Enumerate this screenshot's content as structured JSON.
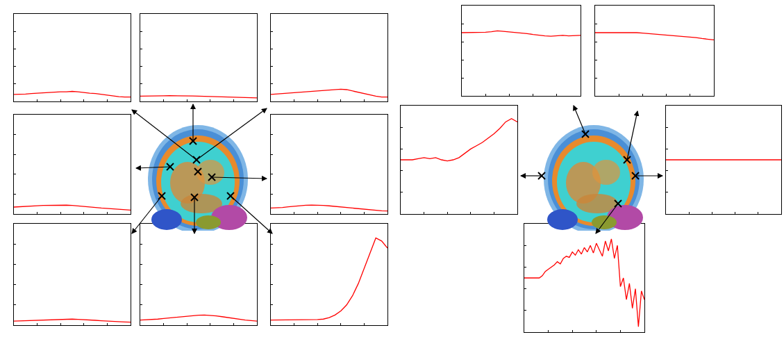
{
  "chart_data": [
    {
      "type": "line",
      "color": "#ff0000",
      "grid": false,
      "tick_labels": false,
      "xlim": [
        0,
        1
      ],
      "ylim": [
        0,
        1
      ],
      "xticks": [
        0,
        0.2,
        0.4,
        0.6,
        0.8,
        1
      ],
      "yticks": [
        0,
        0.2,
        0.4,
        0.6,
        0.8,
        1
      ],
      "x": [
        0,
        0.05,
        0.1,
        0.15,
        0.2,
        0.25,
        0.3,
        0.35,
        0.4,
        0.45,
        0.5,
        0.55,
        0.6,
        0.65,
        0.7,
        0.75,
        0.8,
        0.85,
        0.9,
        0.95,
        1
      ],
      "values": [
        0.08,
        0.08,
        0.085,
        0.09,
        0.095,
        0.1,
        0.1,
        0.105,
        0.11,
        0.11,
        0.115,
        0.11,
        0.1,
        0.095,
        0.09,
        0.08,
        0.07,
        0.06,
        0.055,
        0.05,
        0.05
      ]
    },
    {
      "type": "line",
      "color": "#ff0000",
      "grid": false,
      "tick_labels": false,
      "xlim": [
        0,
        1
      ],
      "ylim": [
        0,
        1
      ],
      "xticks": [
        0,
        0.2,
        0.4,
        0.6,
        0.8,
        1
      ],
      "yticks": [
        0,
        0.2,
        0.4,
        0.6,
        0.8,
        1
      ],
      "x": [
        0,
        0.05,
        0.1,
        0.15,
        0.2,
        0.25,
        0.3,
        0.35,
        0.4,
        0.45,
        0.5,
        0.55,
        0.6,
        0.65,
        0.7,
        0.75,
        0.8,
        0.85,
        0.9,
        0.95,
        1
      ],
      "values": [
        0.06,
        0.06,
        0.062,
        0.064,
        0.065,
        0.066,
        0.066,
        0.065,
        0.064,
        0.062,
        0.06,
        0.058,
        0.056,
        0.054,
        0.052,
        0.05,
        0.048,
        0.046,
        0.044,
        0.042,
        0.04
      ]
    },
    {
      "type": "line",
      "color": "#ff0000",
      "grid": false,
      "tick_labels": false,
      "xlim": [
        0,
        1
      ],
      "ylim": [
        0,
        1
      ],
      "xticks": [
        0,
        0.2,
        0.4,
        0.6,
        0.8,
        1
      ],
      "yticks": [
        0,
        0.2,
        0.4,
        0.6,
        0.8,
        1
      ],
      "x": [
        0,
        0.05,
        0.1,
        0.15,
        0.2,
        0.25,
        0.3,
        0.35,
        0.4,
        0.45,
        0.5,
        0.55,
        0.6,
        0.65,
        0.7,
        0.75,
        0.8,
        0.85,
        0.9,
        0.95,
        1
      ],
      "values": [
        0.08,
        0.085,
        0.09,
        0.095,
        0.1,
        0.105,
        0.11,
        0.12,
        0.125,
        0.13,
        0.135,
        0.14,
        0.14,
        0.135,
        0.12,
        0.1,
        0.085,
        0.07,
        0.06,
        0.05,
        0.05
      ]
    },
    {
      "type": "line",
      "color": "#ff0000",
      "grid": false,
      "tick_labels": false,
      "xlim": [
        0,
        1
      ],
      "ylim": [
        0,
        1
      ],
      "xticks": [
        0,
        0.2,
        0.4,
        0.6,
        0.8,
        1
      ],
      "yticks": [
        0,
        0.2,
        0.4,
        0.6,
        0.8,
        1
      ],
      "x": [
        0,
        0.05,
        0.1,
        0.15,
        0.2,
        0.25,
        0.3,
        0.35,
        0.4,
        0.45,
        0.5,
        0.55,
        0.6,
        0.65,
        0.7,
        0.75,
        0.8,
        0.85,
        0.9,
        0.95,
        1
      ],
      "values": [
        0.07,
        0.072,
        0.075,
        0.08,
        0.083,
        0.086,
        0.088,
        0.09,
        0.09,
        0.089,
        0.087,
        0.083,
        0.078,
        0.072,
        0.066,
        0.06,
        0.055,
        0.05,
        0.046,
        0.043,
        0.04
      ]
    },
    {
      "type": "line",
      "color": "#ff0000",
      "grid": false,
      "tick_labels": false,
      "xlim": [
        0,
        1
      ],
      "ylim": [
        0,
        1
      ],
      "xticks": [
        0,
        0.2,
        0.4,
        0.6,
        0.8,
        1
      ],
      "yticks": [
        0,
        0.2,
        0.4,
        0.6,
        0.8,
        1
      ],
      "x": [
        0,
        0.05,
        0.1,
        0.15,
        0.2,
        0.25,
        0.3,
        0.35,
        0.4,
        0.45,
        0.5,
        0.55,
        0.6,
        0.65,
        0.7,
        0.75,
        0.8,
        0.85,
        0.9,
        0.95,
        1
      ],
      "values": [
        0.06,
        0.062,
        0.066,
        0.072,
        0.078,
        0.084,
        0.088,
        0.09,
        0.09,
        0.087,
        0.082,
        0.076,
        0.07,
        0.064,
        0.058,
        0.052,
        0.046,
        0.04,
        0.036,
        0.032,
        0.03
      ]
    },
    {
      "type": "line",
      "color": "#ff0000",
      "grid": false,
      "tick_labels": false,
      "xlim": [
        0,
        1
      ],
      "ylim": [
        0,
        1
      ],
      "xticks": [
        0,
        0.2,
        0.4,
        0.6,
        0.8,
        1
      ],
      "yticks": [
        0,
        0.2,
        0.4,
        0.6,
        0.8,
        1
      ],
      "x": [
        0,
        0.05,
        0.1,
        0.15,
        0.2,
        0.25,
        0.3,
        0.35,
        0.4,
        0.45,
        0.5,
        0.55,
        0.6,
        0.65,
        0.7,
        0.75,
        0.8,
        0.85,
        0.9,
        0.95,
        1
      ],
      "values": [
        0.04,
        0.042,
        0.045,
        0.048,
        0.051,
        0.054,
        0.056,
        0.058,
        0.06,
        0.06,
        0.06,
        0.058,
        0.056,
        0.052,
        0.048,
        0.044,
        0.04,
        0.037,
        0.034,
        0.032,
        0.03
      ]
    },
    {
      "type": "line",
      "color": "#ff0000",
      "grid": false,
      "tick_labels": false,
      "xlim": [
        0,
        1
      ],
      "ylim": [
        0,
        1
      ],
      "xticks": [
        0,
        0.2,
        0.4,
        0.6,
        0.8,
        1
      ],
      "yticks": [
        0,
        0.2,
        0.4,
        0.6,
        0.8,
        1
      ],
      "x": [
        0,
        0.05,
        0.1,
        0.15,
        0.2,
        0.25,
        0.3,
        0.35,
        0.4,
        0.45,
        0.5,
        0.55,
        0.6,
        0.65,
        0.7,
        0.75,
        0.8,
        0.85,
        0.9,
        0.95,
        1
      ],
      "values": [
        0.05,
        0.052,
        0.056,
        0.06,
        0.066,
        0.072,
        0.078,
        0.084,
        0.09,
        0.095,
        0.098,
        0.1,
        0.098,
        0.092,
        0.084,
        0.075,
        0.066,
        0.058,
        0.05,
        0.045,
        0.04
      ]
    },
    {
      "type": "line",
      "color": "#ff0000",
      "grid": false,
      "tick_labels": false,
      "xlim": [
        0,
        1
      ],
      "ylim": [
        0,
        1
      ],
      "xticks": [
        0,
        0.2,
        0.4,
        0.6,
        0.8,
        1
      ],
      "yticks": [
        0,
        0.2,
        0.4,
        0.6,
        0.8,
        1
      ],
      "x": [
        0,
        0.05,
        0.1,
        0.15,
        0.2,
        0.25,
        0.3,
        0.35,
        0.4,
        0.45,
        0.5,
        0.55,
        0.6,
        0.65,
        0.7,
        0.75,
        0.8,
        0.85,
        0.9,
        0.95,
        1
      ],
      "values": [
        0.05,
        0.05,
        0.05,
        0.05,
        0.05,
        0.05,
        0.05,
        0.052,
        0.055,
        0.06,
        0.075,
        0.1,
        0.14,
        0.2,
        0.29,
        0.41,
        0.56,
        0.72,
        0.86,
        0.83,
        0.76
      ]
    },
    {
      "type": "line",
      "color": "#ff0000",
      "grid": false,
      "tick_labels": false,
      "xlim": [
        0,
        1
      ],
      "ylim": [
        0,
        1
      ],
      "xticks": [
        0,
        0.2,
        0.4,
        0.6,
        0.8,
        1
      ],
      "yticks": [
        0,
        0.2,
        0.4,
        0.6,
        0.8,
        1
      ],
      "x": [
        0,
        0.05,
        0.1,
        0.15,
        0.2,
        0.25,
        0.3,
        0.35,
        0.4,
        0.45,
        0.5,
        0.55,
        0.6,
        0.65,
        0.7,
        0.75,
        0.8,
        0.85,
        0.9,
        0.95,
        1
      ],
      "values": [
        0.7,
        0.7,
        0.7,
        0.7,
        0.705,
        0.71,
        0.72,
        0.715,
        0.71,
        0.705,
        0.7,
        0.69,
        0.68,
        0.67,
        0.665,
        0.66,
        0.665,
        0.67,
        0.665,
        0.67,
        0.67
      ]
    },
    {
      "type": "line",
      "color": "#ff0000",
      "grid": false,
      "tick_labels": false,
      "xlim": [
        0,
        1
      ],
      "ylim": [
        0,
        1
      ],
      "xticks": [
        0,
        0.2,
        0.4,
        0.6,
        0.8,
        1
      ],
      "yticks": [
        0,
        0.2,
        0.4,
        0.6,
        0.8,
        1
      ],
      "x": [
        0,
        0.05,
        0.1,
        0.15,
        0.2,
        0.25,
        0.3,
        0.35,
        0.4,
        0.45,
        0.5,
        0.55,
        0.6,
        0.65,
        0.7,
        0.75,
        0.8,
        0.85,
        0.9,
        0.95,
        1
      ],
      "values": [
        0.7,
        0.7,
        0.7,
        0.7,
        0.705,
        0.705,
        0.7,
        0.7,
        0.695,
        0.69,
        0.685,
        0.68,
        0.675,
        0.67,
        0.665,
        0.66,
        0.65,
        0.645,
        0.635,
        0.625,
        0.62
      ]
    },
    {
      "type": "line",
      "color": "#ff0000",
      "grid": false,
      "tick_labels": false,
      "xlim": [
        0,
        1
      ],
      "ylim": [
        0,
        1
      ],
      "xticks": [
        0,
        0.2,
        0.4,
        0.6,
        0.8,
        1
      ],
      "yticks": [
        0,
        0.2,
        0.4,
        0.6,
        0.8,
        1
      ],
      "x": [
        0,
        0.05,
        0.1,
        0.15,
        0.2,
        0.25,
        0.3,
        0.35,
        0.4,
        0.45,
        0.5,
        0.55,
        0.6,
        0.65,
        0.7,
        0.75,
        0.8,
        0.85,
        0.9,
        0.95,
        1
      ],
      "values": [
        0.5,
        0.5,
        0.5,
        0.51,
        0.52,
        0.51,
        0.52,
        0.5,
        0.49,
        0.5,
        0.52,
        0.56,
        0.6,
        0.63,
        0.66,
        0.7,
        0.74,
        0.79,
        0.85,
        0.88,
        0.85
      ]
    },
    {
      "type": "line",
      "color": "#ff0000",
      "grid": false,
      "tick_labels": false,
      "xlim": [
        0,
        1
      ],
      "ylim": [
        0,
        1
      ],
      "xticks": [
        0,
        0.2,
        0.4,
        0.6,
        0.8,
        1
      ],
      "yticks": [
        0,
        0.2,
        0.4,
        0.6,
        0.8,
        1
      ],
      "x": [
        0,
        0.05,
        0.1,
        0.15,
        0.2,
        0.25,
        0.3,
        0.35,
        0.4,
        0.45,
        0.5,
        0.55,
        0.6,
        0.65,
        0.7,
        0.75,
        0.8,
        0.85,
        0.9,
        0.95,
        1
      ],
      "values": [
        0.5,
        0.5,
        0.5,
        0.5,
        0.5,
        0.5,
        0.5,
        0.5,
        0.5,
        0.5,
        0.5,
        0.5,
        0.5,
        0.5,
        0.5,
        0.5,
        0.5,
        0.5,
        0.5,
        0.5,
        0.5
      ]
    },
    {
      "type": "line",
      "color": "#ff0000",
      "grid": false,
      "tick_labels": false,
      "xlim": [
        0,
        1
      ],
      "ylim": [
        0,
        1
      ],
      "xticks": [
        0,
        0.2,
        0.4,
        0.6,
        0.8,
        1
      ],
      "yticks": [
        0,
        0.2,
        0.4,
        0.6,
        0.8,
        1
      ],
      "x": [
        0,
        0.025,
        0.05,
        0.075,
        0.1,
        0.125,
        0.15,
        0.175,
        0.2,
        0.225,
        0.25,
        0.275,
        0.3,
        0.325,
        0.35,
        0.375,
        0.4,
        0.425,
        0.45,
        0.475,
        0.5,
        0.525,
        0.55,
        0.575,
        0.6,
        0.625,
        0.65,
        0.675,
        0.7,
        0.725,
        0.75,
        0.775,
        0.8,
        0.825,
        0.85,
        0.875,
        0.9,
        0.925,
        0.95,
        0.975,
        1
      ],
      "values": [
        0.5,
        0.5,
        0.5,
        0.5,
        0.5,
        0.5,
        0.52,
        0.56,
        0.58,
        0.6,
        0.62,
        0.65,
        0.63,
        0.68,
        0.7,
        0.69,
        0.74,
        0.71,
        0.76,
        0.72,
        0.78,
        0.74,
        0.8,
        0.73,
        0.82,
        0.76,
        0.7,
        0.84,
        0.75,
        0.86,
        0.68,
        0.8,
        0.42,
        0.5,
        0.3,
        0.45,
        0.22,
        0.4,
        0.05,
        0.38,
        0.3
      ]
    }
  ]
}
